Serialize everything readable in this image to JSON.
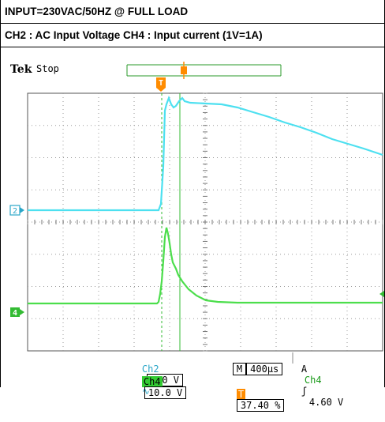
{
  "captions": {
    "line1": "INPUT=230VAC/50HZ @ FULL LOAD",
    "line2": "CH2 : AC Input Voltage  CH4 : Input current (1V=1A)"
  },
  "header": {
    "brand": "Tek",
    "status": "Stop"
  },
  "markers": {
    "trigger": "T",
    "ch2": "2",
    "ch4": "4"
  },
  "readouts": {
    "ch2_label": "Ch2",
    "ch2_scale": "100 V",
    "ch2_coupling": "∿",
    "timebase_mode": "M",
    "timebase": "400µs",
    "trig_mode": "A",
    "trig_source": "Ch4",
    "trig_slope": "ʃ",
    "trig_level": "4.60 V",
    "ch4_label": "Ch4",
    "ch4_scale": "10.0 V",
    "trigger_pos_icon": "T",
    "trigger_pos": "37.40 %"
  },
  "colors": {
    "ch2": "#4de0f0",
    "ch4": "#4cde4c",
    "trigger": "#ff8c00",
    "grid": "#9a9a9a"
  }
}
